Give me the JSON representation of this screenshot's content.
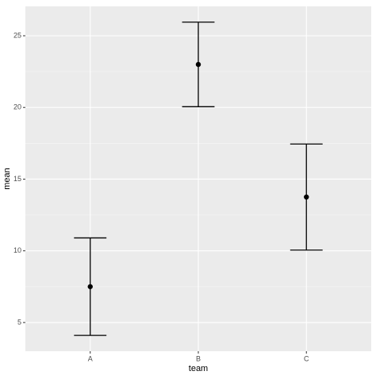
{
  "chart_data": {
    "type": "errorbar",
    "categories": [
      "A",
      "B",
      "C"
    ],
    "values": [
      7.5,
      23.0,
      13.75
    ],
    "errors": [
      3.4,
      2.95,
      3.7
    ],
    "color": "#000000",
    "xlabel": "team",
    "ylabel": "mean",
    "ylim": [
      3.0,
      27.05
    ],
    "yticks": [
      5,
      10,
      15,
      20,
      25
    ],
    "grid": true
  }
}
